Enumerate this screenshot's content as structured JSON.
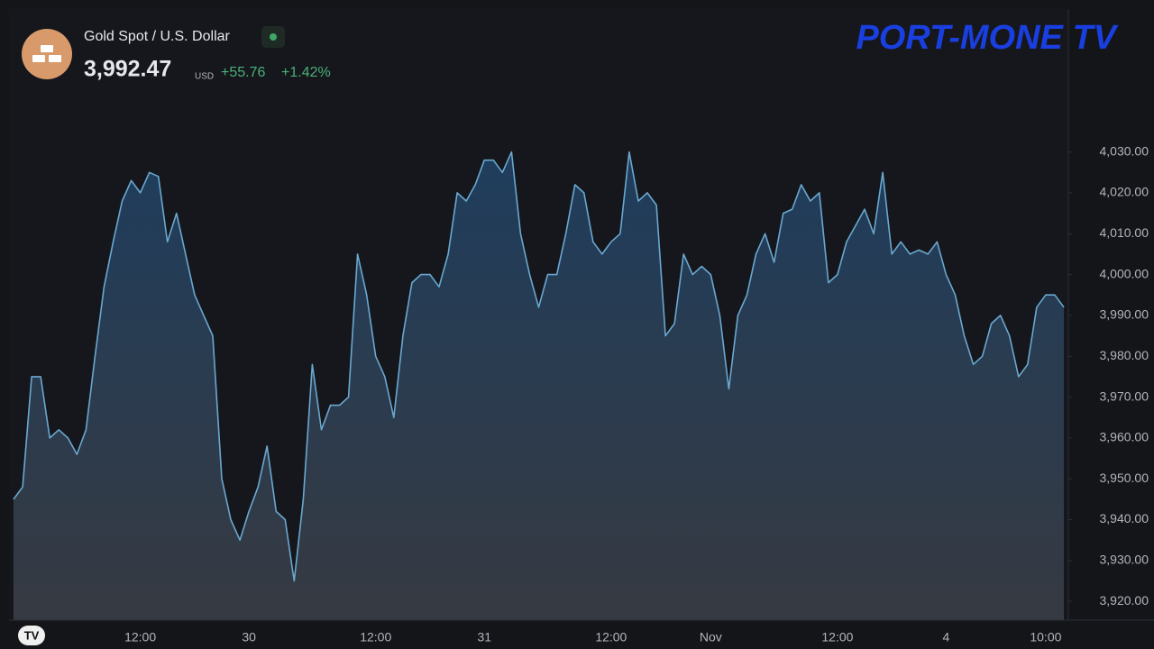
{
  "chart_data": {
    "type": "area",
    "symbol": "Gold Spot / U.S. Dollar",
    "price": "3,992.47",
    "currency": "USD",
    "change": "+55.76",
    "change_pct": "+1.42%",
    "watermark": "PORT-MONE TV",
    "color": "#6aa8d0",
    "grid": false,
    "categories": [
      null,
      null,
      null,
      null,
      null,
      null,
      null,
      null,
      null,
      null,
      null,
      null,
      null,
      null,
      "12:00",
      null,
      null,
      null,
      null,
      null,
      null,
      null,
      null,
      null,
      null,
      null,
      "30",
      null,
      null,
      null,
      null,
      null,
      null,
      null,
      null,
      null,
      null,
      null,
      null,
      null,
      "12:00",
      null,
      null,
      null,
      null,
      null,
      null,
      null,
      null,
      null,
      null,
      null,
      "31",
      null,
      null,
      null,
      null,
      null,
      null,
      null,
      null,
      null,
      null,
      null,
      null,
      null,
      "12:00",
      null,
      null,
      null,
      null,
      null,
      null,
      null,
      null,
      null,
      null,
      "Nov",
      null,
      null,
      null,
      null,
      null,
      null,
      null,
      null,
      null,
      null,
      null,
      null,
      null,
      "12:00",
      null,
      null,
      null,
      null,
      null,
      null,
      null,
      null,
      null,
      null,
      null,
      "4",
      null,
      null,
      null,
      null,
      null,
      null,
      null,
      null,
      null,
      null,
      "10:00",
      null,
      null
    ],
    "values": [
      3945,
      3948,
      3975,
      3975,
      3960,
      3962,
      3960,
      3956,
      3962,
      3980,
      3997,
      4008,
      4018,
      4023,
      4020,
      4025,
      4024,
      4008,
      4015,
      4005,
      3995,
      3990,
      3985,
      3950,
      3940,
      3935,
      3942,
      3948,
      3958,
      3942,
      3940,
      3925,
      3945,
      3978,
      3962,
      3968,
      3968,
      3970,
      4005,
      3995,
      3980,
      3975,
      3965,
      3985,
      3998,
      4000,
      4000,
      3997,
      4005,
      4020,
      4018,
      4022,
      4028,
      4028,
      4025,
      4030,
      4010,
      4000,
      3992,
      4000,
      4000,
      4010,
      4022,
      4020,
      4008,
      4005,
      4008,
      4010,
      4030,
      4018,
      4020,
      4017,
      3985,
      3988,
      4005,
      4000,
      4002,
      4000,
      3990,
      3972,
      3990,
      3995,
      4005,
      4010,
      4003,
      4015,
      4016,
      4022,
      4018,
      4020,
      3998,
      4000,
      4008,
      4012,
      4016,
      4010,
      4025,
      4005,
      4008,
      4005,
      4006,
      4005,
      4008,
      4000,
      3995,
      3985,
      3978,
      3980,
      3988,
      3990,
      3985,
      3975,
      3978,
      3992,
      3995,
      3995,
      3992
    ],
    "ylim": [
      3915.4,
      4065.0
    ],
    "yticks": [
      {
        "value": 3920,
        "label": "3,920.00"
      },
      {
        "value": 3930,
        "label": "3,930.00"
      },
      {
        "value": 3940,
        "label": "3,940.00"
      },
      {
        "value": 3950,
        "label": "3,950.00"
      },
      {
        "value": 3960,
        "label": "3,960.00"
      },
      {
        "value": 3970,
        "label": "3,970.00"
      },
      {
        "value": 3980,
        "label": "3,980.00"
      },
      {
        "value": 3990,
        "label": "3,990.00"
      },
      {
        "value": 4000,
        "label": "4,000.00"
      },
      {
        "value": 4010,
        "label": "4,010.00"
      },
      {
        "value": 4020,
        "label": "4,020.00"
      },
      {
        "value": 4030,
        "label": "4,030.00"
      }
    ]
  }
}
